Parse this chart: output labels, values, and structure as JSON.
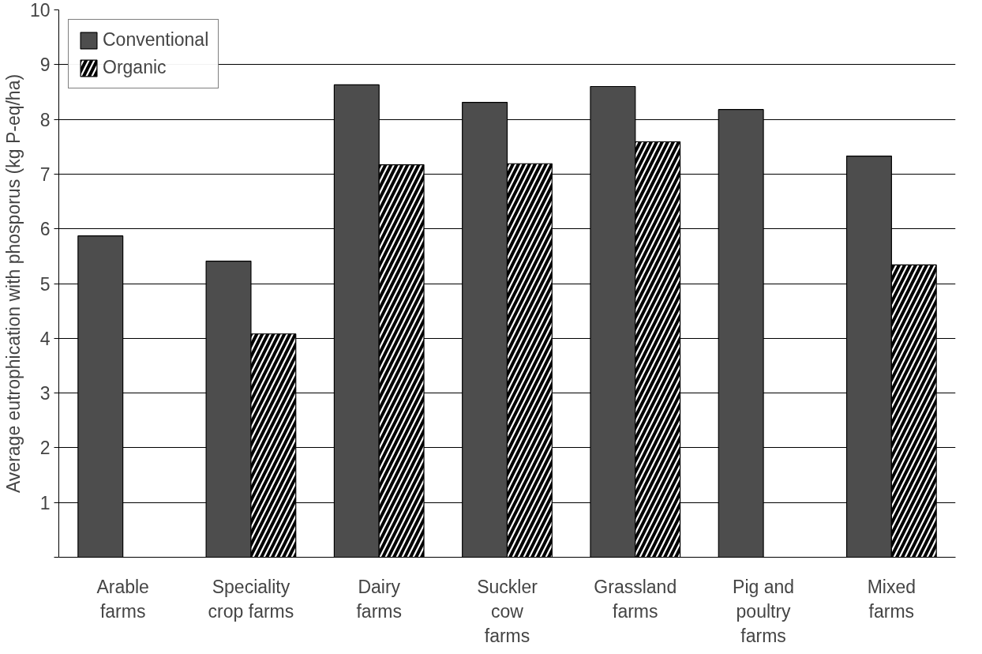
{
  "chart_data": {
    "type": "bar",
    "ylabel": "Average eutrophication with phosporus (kg P-eq/ha)",
    "categories": [
      "Arable\nfarms",
      "Speciality\ncrop farms",
      "Dairy\nfarms",
      "Suckler\ncow\nfarms",
      "Grassland\nfarms",
      "Pig and\npoultry\nfarms",
      "Mixed\nfarms"
    ],
    "series": [
      {
        "name": "Conventional",
        "color": "#4d4d4d",
        "values": [
          5.87,
          5.41,
          8.63,
          8.31,
          8.6,
          8.18,
          7.33
        ]
      },
      {
        "name": "Organic",
        "color": "#ffffff",
        "values": [
          null,
          4.08,
          7.17,
          7.19,
          7.59,
          null,
          5.34
        ]
      }
    ],
    "ylim": [
      0,
      10
    ],
    "yticks": [
      {
        "value": 0,
        "label": null
      },
      1,
      2,
      3,
      4,
      5,
      6,
      7,
      8,
      9,
      10
    ],
    "grid": "y",
    "legend": "top left"
  }
}
